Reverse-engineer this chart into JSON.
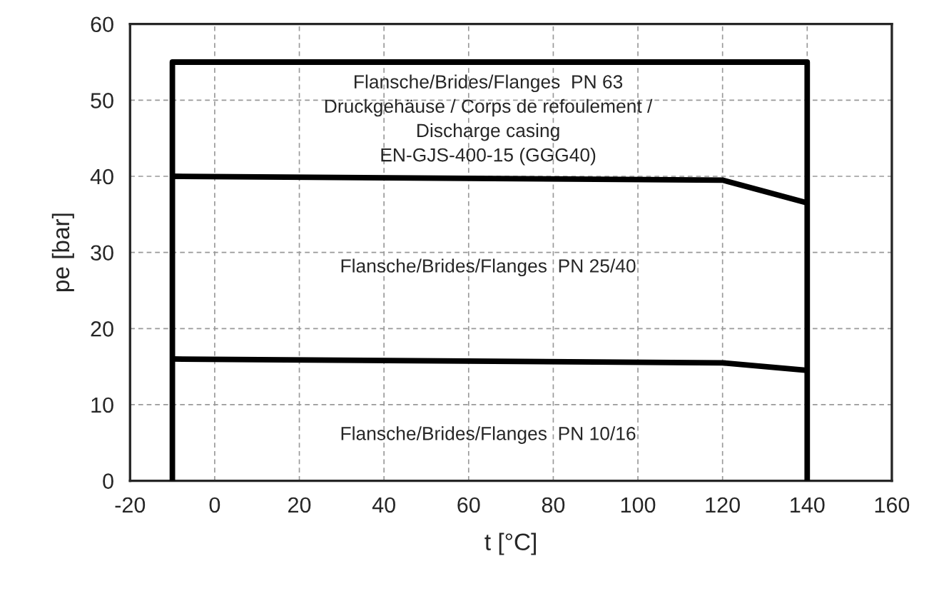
{
  "chart_data": {
    "type": "line",
    "xlabel": "t [°C]",
    "ylabel": "pe [bar]",
    "xlim": [
      -20,
      160
    ],
    "ylim": [
      0,
      60
    ],
    "xticks": [
      -20,
      0,
      20,
      40,
      60,
      80,
      100,
      120,
      140,
      160
    ],
    "yticks": [
      0,
      10,
      20,
      30,
      40,
      50,
      60
    ],
    "grid": true,
    "marker": "none",
    "line_style": "solid",
    "series": [
      {
        "color": "#000000",
        "x": [
          -10,
          -10,
          140,
          140
        ],
        "values": [
          0,
          55,
          55,
          0
        ]
      },
      {
        "color": "#000000",
        "x": [
          -10,
          120,
          140
        ],
        "values": [
          40,
          39.5,
          36.5
        ]
      },
      {
        "color": "#000000",
        "x": [
          -10,
          120,
          140
        ],
        "values": [
          16,
          15.5,
          14.5
        ]
      }
    ],
    "annotations": [
      "Flansche/Brides/Flanges  PN 63\nDruckgehäuse / Corps de refoulement /\nDischarge casing\nEN-GJS-400-15 (GGG40)",
      "Flansche/Brides/Flanges  PN 25/40",
      "Flansche/Brides/Flanges  PN 10/16"
    ]
  }
}
